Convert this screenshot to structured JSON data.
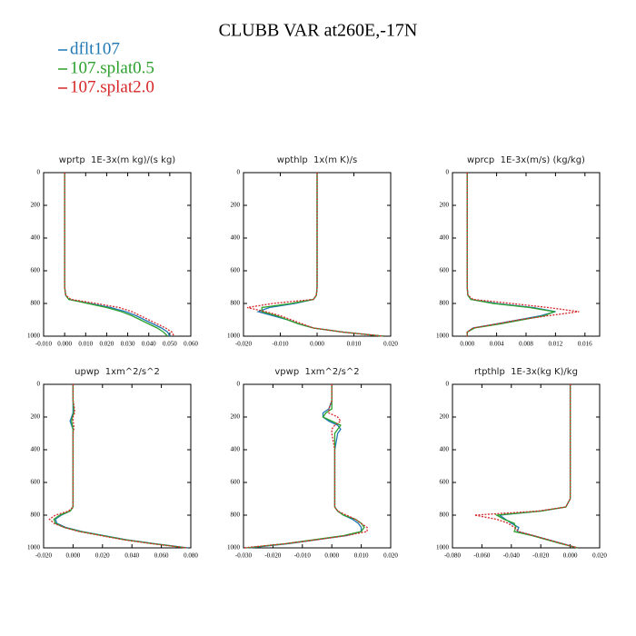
{
  "title": "CLUBB VAR at260E,-17N",
  "chart_data": [
    {
      "type": "line",
      "title": "wprtp  1E-3x(m kg)/(s kg)",
      "levels": [
        0,
        100,
        150,
        175,
        200,
        225,
        250,
        275,
        300,
        400,
        500,
        600,
        700,
        750,
        775,
        800,
        825,
        850,
        875,
        900,
        925,
        950,
        975,
        1000
      ],
      "xlim": [
        -0.01,
        0.06
      ],
      "xticks": [
        {
          "value": -0.01,
          "label": "-0.010"
        },
        {
          "value": 0,
          "label": "0.000"
        },
        {
          "value": 0.01,
          "label": "0.010"
        },
        {
          "value": 0.02,
          "label": "0.020"
        },
        {
          "value": 0.03,
          "label": "0.030"
        },
        {
          "value": 0.04,
          "label": "0.040"
        },
        {
          "value": 0.05,
          "label": "0.050"
        },
        {
          "value": 0.06,
          "label": "0.060"
        }
      ],
      "ylim": [
        0,
        1000
      ],
      "yticks": [
        0,
        200,
        400,
        600,
        800,
        1000
      ],
      "y_inverted": true,
      "series": [
        {
          "name": "dflt107",
          "color": "#1f77b4",
          "dash": false,
          "values": [
            0,
            0,
            0,
            0,
            0,
            0,
            0,
            0,
            0,
            0,
            0,
            0,
            0,
            0.0005,
            0.002,
            0.012,
            0.022,
            0.029,
            0.034,
            0.038,
            0.042,
            0.046,
            0.049,
            0.05
          ]
        },
        {
          "name": "107.splat0.5",
          "color": "#2ca02c",
          "dash": false,
          "values": [
            0,
            0,
            0,
            0,
            0,
            0,
            0,
            0,
            0,
            0,
            0,
            0,
            0,
            0.0005,
            0.002,
            0.011,
            0.02,
            0.027,
            0.032,
            0.036,
            0.04,
            0.044,
            0.047,
            0.049
          ]
        },
        {
          "name": "107.splat2.0",
          "color": "#d62728",
          "dash": true,
          "values": [
            0,
            0,
            0,
            0,
            0,
            0,
            0,
            0,
            0,
            0,
            0,
            0,
            0,
            0.0005,
            0.003,
            0.015,
            0.026,
            0.032,
            0.036,
            0.04,
            0.044,
            0.048,
            0.051,
            0.052
          ]
        }
      ]
    },
    {
      "type": "line",
      "title": "wpthlp  1x(m K)/s",
      "levels": [
        0,
        100,
        150,
        175,
        200,
        225,
        250,
        275,
        300,
        400,
        500,
        600,
        700,
        750,
        775,
        800,
        825,
        850,
        875,
        900,
        925,
        950,
        975,
        1000
      ],
      "xlim": [
        -0.02,
        0.02
      ],
      "xticks": [
        {
          "value": -0.02,
          "label": "-0.020"
        },
        {
          "value": -0.01,
          "label": "-0.010"
        },
        {
          "value": 0,
          "label": "0.000"
        },
        {
          "value": 0.01,
          "label": "0.010"
        },
        {
          "value": 0.02,
          "label": "0.020"
        }
      ],
      "ylim": [
        0,
        1000
      ],
      "yticks": [
        0,
        200,
        400,
        600,
        800,
        1000
      ],
      "y_inverted": true,
      "series": [
        {
          "name": "dflt107",
          "color": "#1f77b4",
          "dash": false,
          "values": [
            0,
            0,
            0,
            0,
            0,
            0,
            0,
            0,
            0,
            0,
            0,
            0,
            0,
            -0.0002,
            -0.001,
            -0.006,
            -0.013,
            -0.016,
            -0.012,
            -0.008,
            -0.005,
            -0.001,
            0.007,
            0.018
          ]
        },
        {
          "name": "107.splat0.5",
          "color": "#2ca02c",
          "dash": false,
          "values": [
            0,
            0,
            0,
            0,
            0,
            0,
            0,
            0,
            0,
            0,
            0,
            0,
            0,
            -0.0002,
            -0.001,
            -0.007,
            -0.015,
            -0.015,
            -0.011,
            -0.008,
            -0.005,
            -0.001,
            0.007,
            0.018
          ]
        },
        {
          "name": "107.splat2.0",
          "color": "#d62728",
          "dash": true,
          "values": [
            0,
            0,
            0,
            0,
            0,
            0,
            0,
            0,
            0,
            0,
            0,
            0,
            0,
            -0.0002,
            -0.001,
            -0.012,
            -0.019,
            -0.014,
            -0.01,
            -0.007,
            -0.004,
            -0.001,
            0.007,
            0.018
          ]
        }
      ]
    },
    {
      "type": "line",
      "title": "wprcp  1E-3x(m/s) (kg/kg)",
      "levels": [
        0,
        100,
        150,
        175,
        200,
        225,
        250,
        275,
        300,
        400,
        500,
        600,
        700,
        750,
        775,
        800,
        825,
        850,
        875,
        900,
        925,
        950,
        975,
        1000
      ],
      "xlim": [
        -0.002,
        0.018
      ],
      "xticks": [
        {
          "value": 0,
          "label": "0.000"
        },
        {
          "value": 0.004,
          "label": "0.004"
        },
        {
          "value": 0.008,
          "label": "0.008"
        },
        {
          "value": 0.012,
          "label": "0.012"
        },
        {
          "value": 0.016,
          "label": "0.016"
        }
      ],
      "ylim": [
        0,
        1000
      ],
      "yticks": [
        0,
        200,
        400,
        600,
        800,
        1000
      ],
      "y_inverted": true,
      "series": [
        {
          "name": "dflt107",
          "color": "#1f77b4",
          "dash": false,
          "values": [
            0,
            0,
            0,
            0,
            0,
            0,
            0,
            0,
            0,
            0,
            0,
            0,
            0,
            0.0001,
            0.0005,
            0.004,
            0.009,
            0.012,
            0.01,
            0.007,
            0.004,
            0.0008,
            0,
            0
          ]
        },
        {
          "name": "107.splat0.5",
          "color": "#2ca02c",
          "dash": false,
          "values": [
            0,
            0,
            0,
            0,
            0,
            0,
            0,
            0,
            0,
            0,
            0,
            0,
            0,
            0.0001,
            0.0005,
            0.0035,
            0.0085,
            0.0118,
            0.0105,
            0.0075,
            0.0045,
            0.001,
            0,
            0
          ]
        },
        {
          "name": "107.splat2.0",
          "color": "#d62728",
          "dash": true,
          "values": [
            0,
            0,
            0,
            0,
            0,
            0,
            0,
            0,
            0,
            0,
            0,
            0,
            0,
            0.0001,
            0.0008,
            0.006,
            0.011,
            0.0152,
            0.011,
            0.007,
            0.004,
            0.0008,
            0,
            0
          ]
        }
      ]
    },
    {
      "type": "line",
      "title": "upwp  1xm^2/s^2",
      "levels": [
        0,
        100,
        150,
        175,
        200,
        225,
        250,
        275,
        300,
        400,
        500,
        600,
        700,
        750,
        775,
        800,
        825,
        850,
        875,
        900,
        925,
        950,
        975,
        1000
      ],
      "xlim": [
        -0.02,
        0.08
      ],
      "xticks": [
        {
          "value": -0.02,
          "label": "-0.020"
        },
        {
          "value": 0,
          "label": "0.000"
        },
        {
          "value": 0.02,
          "label": "0.020"
        },
        {
          "value": 0.04,
          "label": "0.040"
        },
        {
          "value": 0.06,
          "label": "0.060"
        },
        {
          "value": 0.08,
          "label": "0.080"
        }
      ],
      "ylim": [
        0,
        1000
      ],
      "yticks": [
        0,
        200,
        400,
        600,
        800,
        1000
      ],
      "y_inverted": true,
      "series": [
        {
          "name": "dflt107",
          "color": "#1f77b4",
          "dash": false,
          "values": [
            0,
            0,
            0,
            0,
            -0.001,
            -0.002,
            -0.001,
            0,
            0,
            0,
            0,
            0,
            0,
            0,
            -0.002,
            -0.008,
            -0.012,
            -0.011,
            -0.005,
            0.006,
            0.021,
            0.036,
            0.056,
            0.078
          ]
        },
        {
          "name": "107.splat0.5",
          "color": "#2ca02c",
          "dash": false,
          "values": [
            0,
            0,
            0.0005,
            0.0005,
            -0.0005,
            -0.001,
            -0.0005,
            0,
            0,
            0,
            0,
            0,
            0,
            0,
            -0.002,
            -0.009,
            -0.013,
            -0.012,
            -0.006,
            0.005,
            0.02,
            0.035,
            0.055,
            0.077
          ]
        },
        {
          "name": "107.splat2.0",
          "color": "#d62728",
          "dash": true,
          "values": [
            0,
            0,
            0.001,
            0.001,
            0,
            0,
            0.0005,
            0.0005,
            0,
            0,
            0,
            0,
            0,
            0,
            -0.003,
            -0.012,
            -0.016,
            -0.013,
            -0.006,
            0.004,
            0.019,
            0.034,
            0.054,
            0.077
          ]
        }
      ]
    },
    {
      "type": "line",
      "title": "vpwp  1xm^2/s^2",
      "levels": [
        0,
        100,
        150,
        175,
        200,
        225,
        250,
        275,
        300,
        400,
        500,
        600,
        700,
        750,
        775,
        800,
        825,
        850,
        875,
        900,
        925,
        950,
        975,
        1000
      ],
      "xlim": [
        -0.03,
        0.02
      ],
      "xticks": [
        {
          "value": -0.03,
          "label": "-0.030"
        },
        {
          "value": -0.02,
          "label": "-0.020"
        },
        {
          "value": -0.01,
          "label": "-0.010"
        },
        {
          "value": 0,
          "label": "0.000"
        },
        {
          "value": 0.01,
          "label": "0.010"
        },
        {
          "value": 0.02,
          "label": "0.020"
        }
      ],
      "ylim": [
        0,
        1000
      ],
      "yticks": [
        0,
        200,
        400,
        600,
        800,
        1000
      ],
      "y_inverted": true,
      "series": [
        {
          "name": "dflt107",
          "color": "#1f77b4",
          "dash": false,
          "values": [
            0,
            0,
            -0.001,
            -0.003,
            -0.003,
            -0.001,
            0.002,
            0.003,
            0.002,
            0.001,
            0.001,
            0.001,
            0.001,
            0.001,
            0.002,
            0.004,
            0.007,
            0.009,
            0.01,
            0.01,
            0.005,
            -0.005,
            -0.015,
            -0.028
          ]
        },
        {
          "name": "107.splat0.5",
          "color": "#2ca02c",
          "dash": false,
          "values": [
            0,
            0,
            0,
            -0.002,
            -0.003,
            0,
            0.003,
            0.002,
            0.001,
            0.001,
            0.001,
            0.001,
            0.001,
            0.001,
            0.002,
            0.004,
            0.008,
            0.01,
            0.011,
            0.01,
            0.004,
            -0.006,
            -0.016,
            -0.029
          ]
        },
        {
          "name": "107.splat2.0",
          "color": "#d62728",
          "dash": true,
          "values": [
            0,
            0,
            -0.001,
            -0.001,
            0.002,
            0.003,
            0.001,
            0,
            0,
            0.001,
            0.001,
            0.001,
            0.001,
            0.001,
            0.002,
            0.005,
            0.008,
            0.01,
            0.012,
            0.012,
            0.005,
            -0.005,
            -0.016,
            -0.03
          ]
        }
      ]
    },
    {
      "type": "line",
      "title": "rtpthlp  1E-3x(kg K)/kg",
      "levels": [
        0,
        100,
        150,
        175,
        200,
        225,
        250,
        275,
        300,
        400,
        500,
        600,
        700,
        750,
        775,
        800,
        825,
        850,
        875,
        900,
        925,
        950,
        975,
        1000
      ],
      "xlim": [
        -0.08,
        0.02
      ],
      "xticks": [
        {
          "value": -0.08,
          "label": "-0.080"
        },
        {
          "value": -0.06,
          "label": "-0.060"
        },
        {
          "value": -0.04,
          "label": "-0.040"
        },
        {
          "value": -0.02,
          "label": "-0.020"
        },
        {
          "value": 0,
          "label": "0.000"
        },
        {
          "value": 0.02,
          "label": "0.020"
        }
      ],
      "ylim": [
        0,
        1000
      ],
      "yticks": [
        0,
        200,
        400,
        600,
        800,
        1000
      ],
      "y_inverted": true,
      "series": [
        {
          "name": "dflt107",
          "color": "#1f77b4",
          "dash": false,
          "values": [
            0,
            0,
            0,
            0,
            0,
            0,
            0,
            0,
            0,
            0,
            0,
            0,
            0,
            -0.003,
            -0.02,
            -0.048,
            -0.044,
            -0.04,
            -0.035,
            -0.036,
            -0.025,
            -0.015,
            -0.005,
            0.005
          ]
        },
        {
          "name": "107.splat0.5",
          "color": "#2ca02c",
          "dash": false,
          "values": [
            0,
            0,
            0,
            0,
            0,
            0,
            0,
            0,
            0,
            0,
            0,
            0,
            0,
            -0.003,
            -0.02,
            -0.05,
            -0.045,
            -0.038,
            -0.037,
            -0.038,
            -0.026,
            -0.016,
            -0.006,
            0.005
          ]
        },
        {
          "name": "107.splat2.0",
          "color": "#d62728",
          "dash": true,
          "values": [
            0,
            0,
            0,
            0,
            0,
            0,
            0,
            0,
            0,
            0,
            0,
            0,
            0,
            -0.003,
            -0.022,
            -0.065,
            -0.05,
            -0.042,
            -0.038,
            -0.035,
            -0.025,
            -0.015,
            -0.005,
            0.005
          ]
        }
      ]
    }
  ]
}
